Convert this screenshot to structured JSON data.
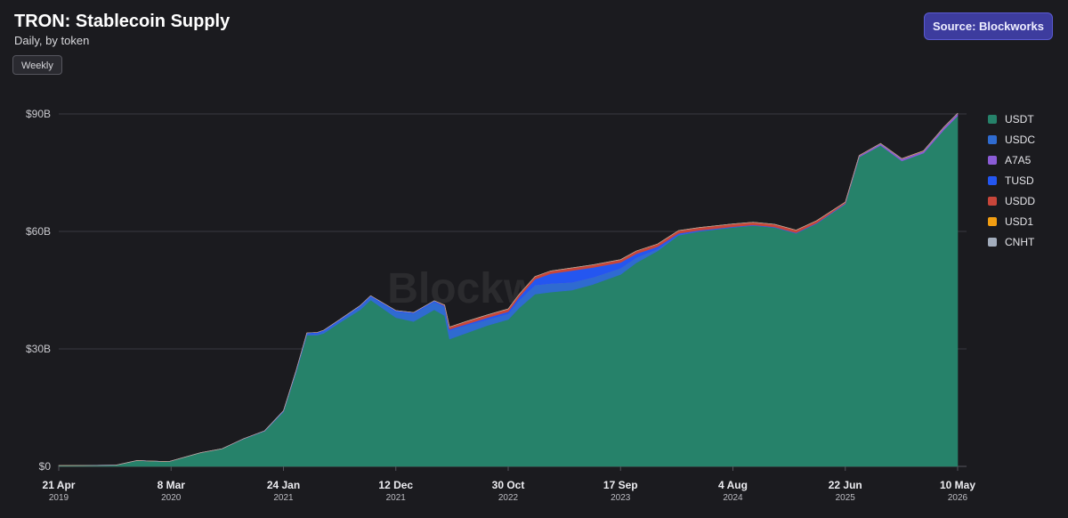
{
  "header": {
    "title": "TRON: Stablecoin Supply",
    "subtitle": "Daily, by token",
    "weekly_label": "Weekly",
    "source_label": "Source: Blockworks"
  },
  "watermark": "Blockworks",
  "chart_data": {
    "type": "area",
    "stacked": true,
    "title": "TRON: Stablecoin Supply",
    "subtitle": "Daily, by token",
    "ylim": [
      0,
      90
    ],
    "y_ticks": [
      {
        "value": 0,
        "label": "$0"
      },
      {
        "value": 30,
        "label": "$30B"
      },
      {
        "value": 60,
        "label": "$60B"
      },
      {
        "value": 90,
        "label": "$90B"
      }
    ],
    "x_ticks": [
      {
        "date": "2019-04-21",
        "day": "21 Apr",
        "year": "2019"
      },
      {
        "date": "2020-03-08",
        "day": "8 Mar",
        "year": "2020"
      },
      {
        "date": "2021-01-24",
        "day": "24 Jan",
        "year": "2021"
      },
      {
        "date": "2021-12-12",
        "day": "12 Dec",
        "year": "2021"
      },
      {
        "date": "2022-10-30",
        "day": "30 Oct",
        "year": "2022"
      },
      {
        "date": "2023-09-17",
        "day": "17 Sep",
        "year": "2023"
      },
      {
        "date": "2024-08-04",
        "day": "4 Aug",
        "year": "2024"
      },
      {
        "date": "2025-06-22",
        "day": "22 Jun",
        "year": "2025"
      },
      {
        "date": "2026-05-10",
        "day": "10 May",
        "year": "2026"
      }
    ],
    "x_range": [
      "2019-04-21",
      "2026-05-10"
    ],
    "legend_position": "right",
    "grid": true,
    "x": [
      "2019-04-21",
      "2019-10-01",
      "2019-12-01",
      "2020-03-01",
      "2020-06-01",
      "2020-08-01",
      "2020-10-01",
      "2020-12-01",
      "2021-01-24",
      "2021-03-01",
      "2021-04-01",
      "2021-05-01",
      "2021-05-20",
      "2021-07-01",
      "2021-09-01",
      "2021-10-01",
      "2021-12-12",
      "2022-02-01",
      "2022-04-01",
      "2022-05-01",
      "2022-05-15",
      "2022-07-01",
      "2022-09-01",
      "2022-10-30",
      "2022-12-01",
      "2023-01-15",
      "2023-03-01",
      "2023-05-01",
      "2023-07-01",
      "2023-09-17",
      "2023-11-01",
      "2024-01-01",
      "2024-03-01",
      "2024-05-01",
      "2024-08-04",
      "2024-10-01",
      "2024-12-01",
      "2025-02-01",
      "2025-04-01",
      "2025-06-22",
      "2025-08-01",
      "2025-10-01",
      "2025-12-01",
      "2026-02-01",
      "2026-04-01",
      "2026-05-10"
    ],
    "series": [
      {
        "name": "USDT",
        "color": "#26826a",
        "values": [
          0.2,
          0.3,
          1.5,
          1.2,
          3.5,
          4.5,
          7.0,
          9.0,
          14.0,
          24.0,
          33.5,
          33.5,
          34.0,
          36.5,
          40.0,
          42.5,
          38.0,
          37.0,
          40.0,
          38.5,
          32.5,
          34.0,
          36.0,
          37.5,
          40.5,
          44.0,
          44.5,
          45.0,
          46.5,
          49.0,
          52.0,
          55.0,
          59.0,
          60.0,
          61.0,
          61.5,
          61.0,
          59.5,
          62.0,
          67.0,
          79.0,
          82.0,
          78.0,
          80.0,
          86.0,
          89.5
        ]
      },
      {
        "name": "USDC",
        "color": "#2f6bd0",
        "values": [
          0,
          0,
          0,
          0,
          0,
          0,
          0,
          0,
          0,
          0.1,
          0.3,
          0.4,
          0.5,
          0.5,
          0.8,
          0.8,
          1.5,
          2.0,
          2.0,
          2.2,
          2.2,
          2.0,
          1.5,
          1.5,
          2.0,
          2.3,
          2.2,
          2.0,
          1.8,
          1.6,
          1.3,
          0.5,
          0.2,
          0.1,
          0.1,
          0.05,
          0.05,
          0.05,
          0.05,
          0.05,
          0,
          0,
          0,
          0,
          0,
          0
        ]
      },
      {
        "name": "A7A5",
        "color": "#8b5cd6",
        "values": [
          0,
          0,
          0,
          0,
          0,
          0,
          0,
          0,
          0,
          0,
          0,
          0,
          0,
          0,
          0,
          0,
          0,
          0,
          0,
          0,
          0,
          0,
          0,
          0,
          0,
          0,
          0,
          0,
          0,
          0,
          0,
          0,
          0,
          0,
          0,
          0,
          0,
          0,
          0,
          0.1,
          0.3,
          0.4,
          0.5,
          0.5,
          0.6,
          0.6
        ]
      },
      {
        "name": "TUSD",
        "color": "#2456f0",
        "values": [
          0,
          0,
          0,
          0,
          0,
          0,
          0.05,
          0.1,
          0.2,
          0.3,
          0.3,
          0.3,
          0.3,
          0.3,
          0.3,
          0.3,
          0.3,
          0.3,
          0.3,
          0.3,
          0.3,
          0.3,
          0.5,
          0.5,
          0.8,
          1.5,
          2.5,
          3.0,
          2.5,
          1.5,
          1.0,
          0.6,
          0.3,
          0.2,
          0.1,
          0.1,
          0.1,
          0.1,
          0.1,
          0.05,
          0,
          0,
          0,
          0,
          0,
          0
        ]
      },
      {
        "name": "USDD",
        "color": "#c8463a",
        "values": [
          0,
          0,
          0,
          0,
          0,
          0,
          0,
          0,
          0,
          0,
          0,
          0,
          0,
          0,
          0,
          0,
          0,
          0,
          0,
          0.2,
          0.6,
          0.7,
          0.7,
          0.7,
          0.7,
          0.7,
          0.7,
          0.7,
          0.7,
          0.7,
          0.7,
          0.7,
          0.7,
          0.7,
          0.7,
          0.7,
          0.7,
          0.7,
          0.6,
          0.3,
          0.1,
          0.05,
          0.05,
          0.05,
          0.05,
          0.05
        ]
      },
      {
        "name": "USD1",
        "color": "#f29e12",
        "values": [
          0,
          0,
          0,
          0,
          0,
          0,
          0,
          0,
          0,
          0,
          0,
          0,
          0,
          0,
          0,
          0,
          0,
          0,
          0,
          0,
          0,
          0,
          0,
          0,
          0,
          0,
          0,
          0,
          0,
          0,
          0,
          0,
          0,
          0,
          0,
          0,
          0,
          0,
          0,
          0,
          0.02,
          0.03,
          0.03,
          0.03,
          0.03,
          0.03
        ]
      },
      {
        "name": "CNHT",
        "color": "#a3adbc",
        "values": [
          0,
          0,
          0,
          0,
          0,
          0,
          0,
          0,
          0,
          0,
          0,
          0,
          0,
          0,
          0,
          0,
          0,
          0,
          0,
          0,
          0,
          0,
          0,
          0,
          0,
          0,
          0,
          0,
          0,
          0,
          0,
          0,
          0,
          0,
          0,
          0,
          0,
          0,
          0,
          0,
          0,
          0,
          0,
          0,
          0,
          0
        ]
      }
    ]
  }
}
